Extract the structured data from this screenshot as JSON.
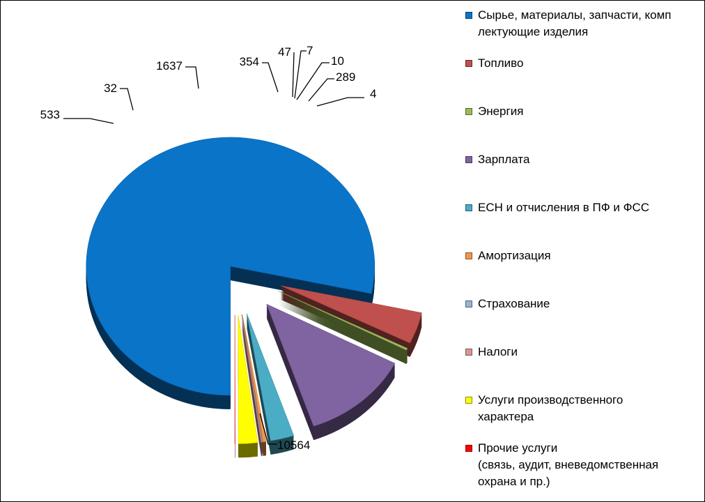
{
  "chart_data": {
    "type": "pie",
    "style": "3d-exploded",
    "legend_position": "right",
    "categories": [
      "Сырье, материалы, запчасти, комп\nлектующие изделия",
      "Топливо",
      "Энергия",
      "Зарплата",
      "ЕСН и отчисления в ПФ и ФСС",
      "Амортизация",
      "Страхование",
      "Налоги",
      "Услуги производственного\nхарактера",
      "Прочие услуги\n(связь, аудит, вневедомственная\nохрана и пр.)"
    ],
    "values": [
      10564,
      533,
      32,
      1637,
      354,
      47,
      7,
      10,
      289,
      4
    ],
    "value_labels": [
      "10564",
      "533",
      "32",
      "1637",
      "354",
      "47",
      "7",
      "10",
      "289",
      "4"
    ],
    "colors": [
      "#0a74c8",
      "#c0504d",
      "#9bbb59",
      "#8064a2",
      "#4bacc6",
      "#f79646",
      "#95b3d7",
      "#d99694",
      "#ffff00",
      "#ff0000"
    ]
  }
}
